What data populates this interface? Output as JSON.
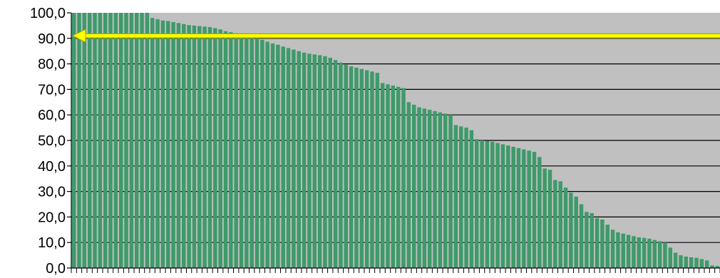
{
  "chart_data": {
    "type": "bar",
    "title": "",
    "xlabel": "",
    "ylabel": "",
    "ylim": [
      0,
      100
    ],
    "yticks": [
      "0,0",
      "10,0",
      "20,0",
      "30,0",
      "40,0",
      "50,0",
      "60,0",
      "70,0",
      "80,0",
      "90,0",
      "100,0"
    ],
    "grid": true,
    "legend": "none",
    "reference_line": {
      "value": 91,
      "style": "arrow"
    },
    "values": [
      100.0,
      100.0,
      100.0,
      100.0,
      100.0,
      100.0,
      100.0,
      100.0,
      100.0,
      100.0,
      100.0,
      100.0,
      100.0,
      100.0,
      100.0,
      98.0,
      97.5,
      97.0,
      96.8,
      96.4,
      96.0,
      95.6,
      95.2,
      95.0,
      94.8,
      94.6,
      94.4,
      94.0,
      93.5,
      92.8,
      92.4,
      92.0,
      91.6,
      91.0,
      90.6,
      90.0,
      89.4,
      88.7,
      88.0,
      87.5,
      86.8,
      86.2,
      85.6,
      85.0,
      84.4,
      84.0,
      83.7,
      83.4,
      83.0,
      82.4,
      81.5,
      80.5,
      79.7,
      79.0,
      78.5,
      78.0,
      77.5,
      77.0,
      76.5,
      72.5,
      72.0,
      71.5,
      71.0,
      70.5,
      65.0,
      64.0,
      63.0,
      62.5,
      62.0,
      61.5,
      61.0,
      60.5,
      60.0,
      56.0,
      55.5,
      55.0,
      54.0,
      50.5,
      50.0,
      49.8,
      49.5,
      49.0,
      48.5,
      48.0,
      47.5,
      47.0,
      46.5,
      46.0,
      45.5,
      43.5,
      39.0,
      38.5,
      34.5,
      34.0,
      31.5,
      29.5,
      28.0,
      25.0,
      22.0,
      21.5,
      19.5,
      19.0,
      17.0,
      15.0,
      14.0,
      13.5,
      13.0,
      12.5,
      12.0,
      11.8,
      11.5,
      11.0,
      10.5,
      10.0,
      8.0,
      6.0,
      5.0,
      4.5,
      4.2,
      4.0,
      3.5,
      3.0,
      1.0,
      0.8
    ],
    "colors": {
      "bar": "#3e9a6a",
      "plot_background": "#c0c0c0",
      "gridline": "#000000",
      "reference_line": "#ffff00",
      "reference_line_outline": "#a8a800"
    }
  }
}
